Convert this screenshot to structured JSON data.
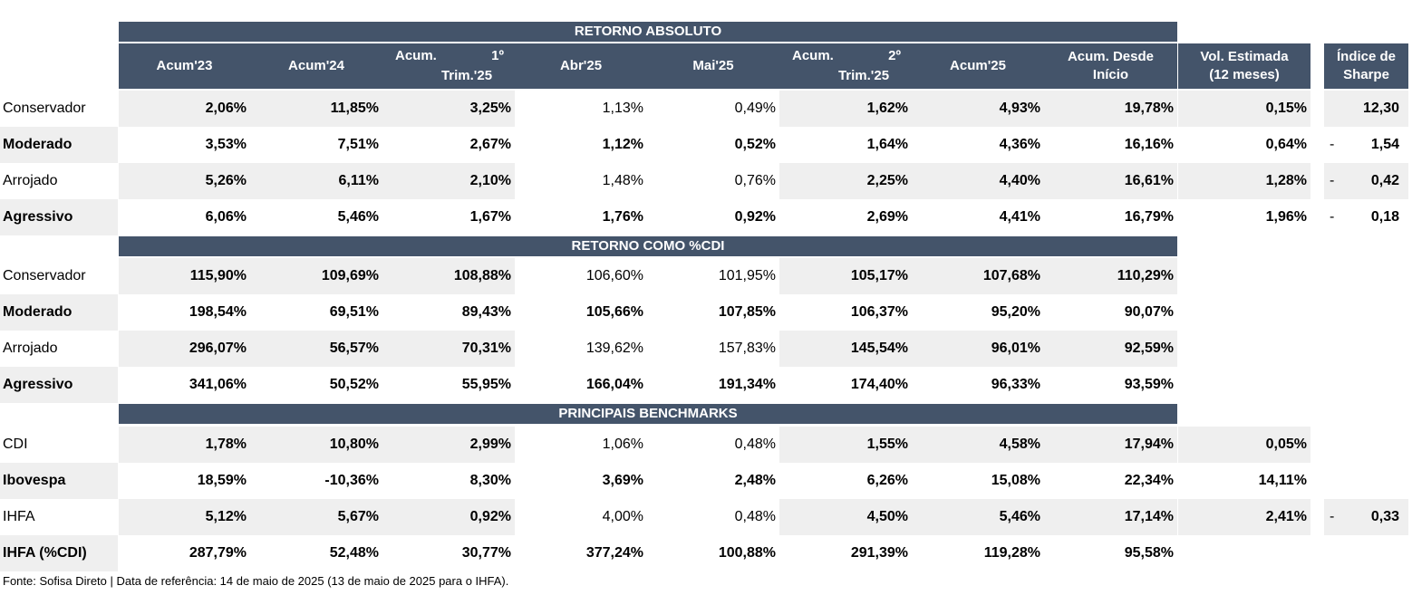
{
  "sections": {
    "absolute": "RETORNO ABSOLUTO",
    "cdi": "RETORNO COMO %CDI",
    "bench": "PRINCIPAIS BENCHMARKS"
  },
  "headers": {
    "acum23": "Acum'23",
    "acum24": "Acum'24",
    "q1_a": "Acum.",
    "q1_b": "1º",
    "q1_c": "Trim.'25",
    "abr25": "Abr'25",
    "mai25": "Mai'25",
    "q2_a": "Acum.",
    "q2_b": "2º",
    "q2_c": "Trim.'25",
    "acum25": "Acum'25",
    "desde_a": "Acum. Desde",
    "desde_b": "Início",
    "vol_a": "Vol. Estimada",
    "vol_b": "(12 meses)",
    "sharpe_a": "Índice de",
    "sharpe_b": "Sharpe"
  },
  "absolute_rows": [
    {
      "label": "Conservador",
      "acum23": "2,06%",
      "acum24": "11,85%",
      "q1": "3,25%",
      "abr": "1,13%",
      "mai": "0,49%",
      "q2": "1,62%",
      "acum25": "4,93%",
      "desde": "19,78%",
      "vol": "0,15%",
      "sharpe_sign": "",
      "sharpe": "12,30"
    },
    {
      "label": "Moderado",
      "acum23": "3,53%",
      "acum24": "7,51%",
      "q1": "2,67%",
      "abr": "1,12%",
      "mai": "0,52%",
      "q2": "1,64%",
      "acum25": "4,36%",
      "desde": "16,16%",
      "vol": "0,64%",
      "sharpe_sign": "-",
      "sharpe": "1,54"
    },
    {
      "label": "Arrojado",
      "acum23": "5,26%",
      "acum24": "6,11%",
      "q1": "2,10%",
      "abr": "1,48%",
      "mai": "0,76%",
      "q2": "2,25%",
      "acum25": "4,40%",
      "desde": "16,61%",
      "vol": "1,28%",
      "sharpe_sign": "-",
      "sharpe": "0,42"
    },
    {
      "label": "Agressivo",
      "acum23": "6,06%",
      "acum24": "5,46%",
      "q1": "1,67%",
      "abr": "1,76%",
      "mai": "0,92%",
      "q2": "2,69%",
      "acum25": "4,41%",
      "desde": "16,79%",
      "vol": "1,96%",
      "sharpe_sign": "-",
      "sharpe": "0,18"
    }
  ],
  "cdi_rows": [
    {
      "label": "Conservador",
      "acum23": "115,90%",
      "acum24": "109,69%",
      "q1": "108,88%",
      "abr": "106,60%",
      "mai": "101,95%",
      "q2": "105,17%",
      "acum25": "107,68%",
      "desde": "110,29%"
    },
    {
      "label": "Moderado",
      "acum23": "198,54%",
      "acum24": "69,51%",
      "q1": "89,43%",
      "abr": "105,66%",
      "mai": "107,85%",
      "q2": "106,37%",
      "acum25": "95,20%",
      "desde": "90,07%"
    },
    {
      "label": "Arrojado",
      "acum23": "296,07%",
      "acum24": "56,57%",
      "q1": "70,31%",
      "abr": "139,62%",
      "mai": "157,83%",
      "q2": "145,54%",
      "acum25": "96,01%",
      "desde": "92,59%"
    },
    {
      "label": "Agressivo",
      "acum23": "341,06%",
      "acum24": "50,52%",
      "q1": "55,95%",
      "abr": "166,04%",
      "mai": "191,34%",
      "q2": "174,40%",
      "acum25": "96,33%",
      "desde": "93,59%"
    }
  ],
  "bench_rows": [
    {
      "label": "CDI",
      "acum23": "1,78%",
      "acum24": "10,80%",
      "q1": "2,99%",
      "abr": "1,06%",
      "mai": "0,48%",
      "q2": "1,55%",
      "acum25": "4,58%",
      "desde": "17,94%",
      "vol": "0,05%"
    },
    {
      "label": "Ibovespa",
      "acum23": "18,59%",
      "acum24": "-10,36%",
      "q1": "8,30%",
      "abr": "3,69%",
      "mai": "2,48%",
      "q2": "6,26%",
      "acum25": "15,08%",
      "desde": "22,34%",
      "vol": "14,11%"
    },
    {
      "label": "IHFA",
      "acum23": "5,12%",
      "acum24": "5,67%",
      "q1": "0,92%",
      "abr": "4,00%",
      "mai": "0,48%",
      "q2": "4,50%",
      "acum25": "5,46%",
      "desde": "17,14%",
      "vol": "2,41%",
      "sharpe_sign": "-",
      "sharpe": "0,33"
    },
    {
      "label": "IHFA (%CDI)",
      "acum23": "287,79%",
      "acum24": "52,48%",
      "q1": "30,77%",
      "abr": "377,24%",
      "mai": "100,88%",
      "q2": "291,39%",
      "acum25": "119,28%",
      "desde": "95,58%"
    }
  ],
  "footer": "Fonte: Sofisa Direto | Data de referência: 14 de maio de 2025 (13 de maio de 2025 para o IHFA)."
}
